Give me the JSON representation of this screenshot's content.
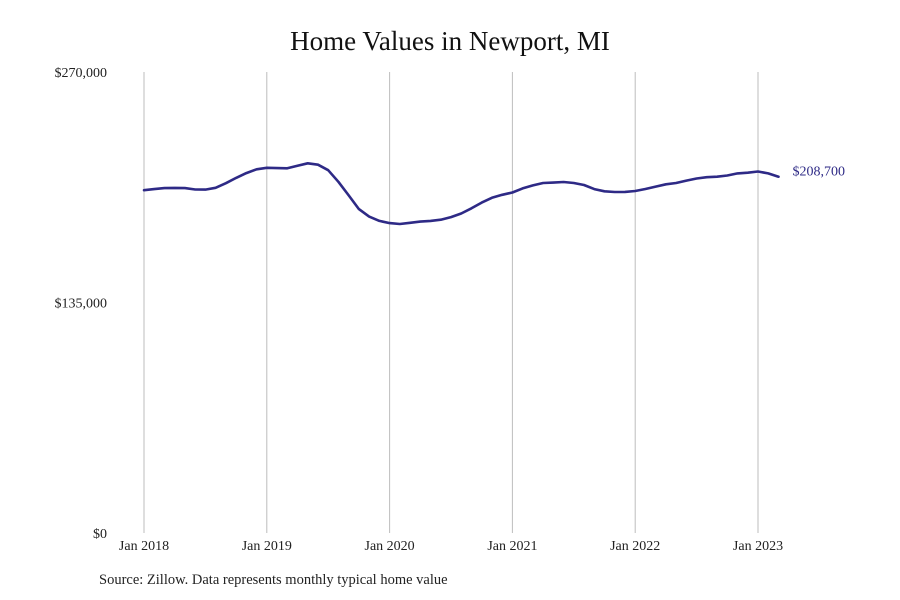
{
  "chart_data": {
    "type": "line",
    "title": "Home Values in Newport, MI",
    "xlabel": "",
    "ylabel": "",
    "ylim": [
      0,
      270000
    ],
    "y_ticks": [
      {
        "value": 0,
        "label": "$0"
      },
      {
        "value": 135000,
        "label": "$135,000"
      },
      {
        "value": 270000,
        "label": "$270,000"
      }
    ],
    "x_ticks": [
      {
        "value": "2018-01",
        "label": "Jan 2018"
      },
      {
        "value": "2019-01",
        "label": "Jan 2019"
      },
      {
        "value": "2020-01",
        "label": "Jan 2020"
      },
      {
        "value": "2021-01",
        "label": "Jan 2021"
      },
      {
        "value": "2022-01",
        "label": "Jan 2022"
      },
      {
        "value": "2023-01",
        "label": "Jan 2023"
      }
    ],
    "grid": {
      "vertical": true,
      "horizontal": false
    },
    "line_color": "#2e2a86",
    "end_label": "$208,700",
    "series": [
      {
        "x": [
          "2018-01",
          "2018-02",
          "2018-03",
          "2018-04",
          "2018-05",
          "2018-06",
          "2018-07",
          "2018-08",
          "2018-09",
          "2018-10",
          "2018-11",
          "2018-12",
          "2019-01",
          "2019-02",
          "2019-03",
          "2019-04",
          "2019-05",
          "2019-06",
          "2019-07",
          "2019-08",
          "2019-09",
          "2019-10",
          "2019-11",
          "2019-12",
          "2020-01",
          "2020-02",
          "2020-03",
          "2020-04",
          "2020-05",
          "2020-06",
          "2020-07",
          "2020-08",
          "2020-09",
          "2020-10",
          "2020-11",
          "2020-12",
          "2021-01",
          "2021-02",
          "2021-03",
          "2021-04",
          "2021-05",
          "2021-06",
          "2021-07",
          "2021-08",
          "2021-09",
          "2021-10",
          "2021-11",
          "2021-12",
          "2022-01",
          "2022-02",
          "2022-03",
          "2022-04",
          "2022-05",
          "2022-06",
          "2022-07",
          "2022-08",
          "2022-09",
          "2022-10",
          "2022-11",
          "2022-12",
          "2023-01",
          "2023-02",
          "2023-03"
        ],
        "values": [
          200800,
          201400,
          202000,
          202100,
          202000,
          201200,
          201100,
          202200,
          204900,
          208000,
          210800,
          213000,
          213900,
          213700,
          213600,
          215100,
          216500,
          215700,
          212500,
          205700,
          197700,
          189700,
          185300,
          182800,
          181500,
          181000,
          181700,
          182400,
          182800,
          183500,
          185000,
          187100,
          190200,
          193500,
          196300,
          198100,
          199400,
          201800,
          203600,
          205000,
          205200,
          205600,
          205000,
          203800,
          201400,
          200100,
          199700,
          199800,
          200300,
          201500,
          202900,
          204200,
          205000,
          206400,
          207600,
          208400,
          208700,
          209400,
          210600,
          211000,
          211700,
          210600,
          208700
        ]
      }
    ]
  },
  "source_note": "Source: Zillow. Data represents monthly typical home value"
}
